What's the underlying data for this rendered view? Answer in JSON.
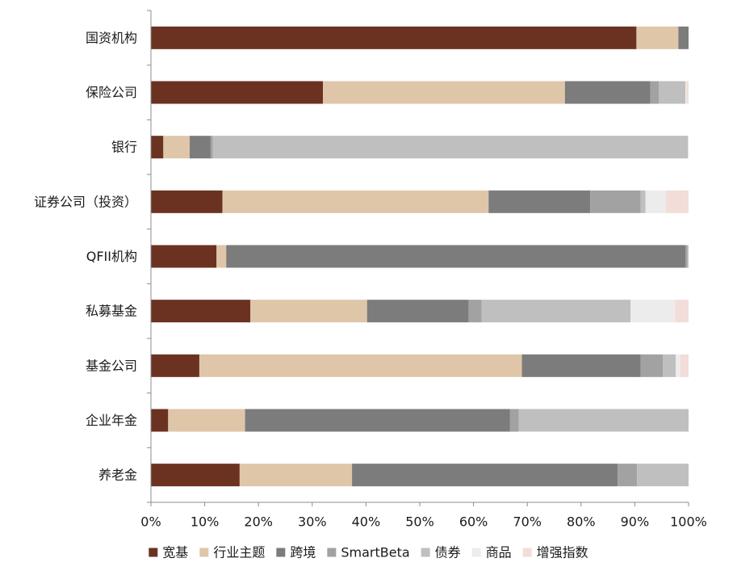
{
  "chart_data": {
    "type": "bar",
    "orientation": "horizontal",
    "stacked": true,
    "percent": true,
    "title": "",
    "xlabel": "",
    "ylabel": "",
    "xlim": [
      0,
      100
    ],
    "x_ticks": [
      "0%",
      "10%",
      "20%",
      "30%",
      "40%",
      "50%",
      "60%",
      "70%",
      "80%",
      "90%",
      "100%"
    ],
    "categories": [
      "国资机构",
      "保险公司",
      "银行",
      "证券公司（投资）",
      "QFII机构",
      "私募基金",
      "基金公司",
      "企业年金",
      "养老金"
    ],
    "series": [
      {
        "name": "宽基",
        "color": "#6b3222",
        "values": [
          90.3,
          32.0,
          2.3,
          13.3,
          12.2,
          18.5,
          9.0,
          3.2,
          16.5
        ]
      },
      {
        "name": "行业主题",
        "color": "#dfc6a9",
        "values": [
          7.8,
          45.0,
          4.9,
          49.5,
          1.8,
          21.7,
          60.0,
          14.3,
          20.9
        ]
      },
      {
        "name": "跨境",
        "color": "#7c7c7c",
        "values": [
          1.9,
          15.9,
          3.9,
          18.9,
          85.4,
          18.9,
          22.1,
          49.3,
          49.4
        ]
      },
      {
        "name": "SmartBeta",
        "color": "#a2a2a2",
        "values": [
          0.0,
          1.6,
          0.4,
          9.4,
          0.4,
          2.4,
          4.1,
          1.6,
          3.6
        ]
      },
      {
        "name": "债券",
        "color": "#bfbfbf",
        "values": [
          0.0,
          4.9,
          88.4,
          0.9,
          0.2,
          27.7,
          2.4,
          31.6,
          9.6
        ]
      },
      {
        "name": "商品",
        "color": "#ececec",
        "values": [
          0.0,
          0.2,
          0.1,
          3.8,
          0.0,
          8.3,
          0.9,
          0.0,
          0.0
        ]
      },
      {
        "name": "增强指数",
        "color": "#f2ddd8",
        "values": [
          0.0,
          0.4,
          0.0,
          4.2,
          0.0,
          2.5,
          1.5,
          0.0,
          0.0
        ]
      }
    ],
    "grid": false,
    "legend_position": "bottom"
  }
}
